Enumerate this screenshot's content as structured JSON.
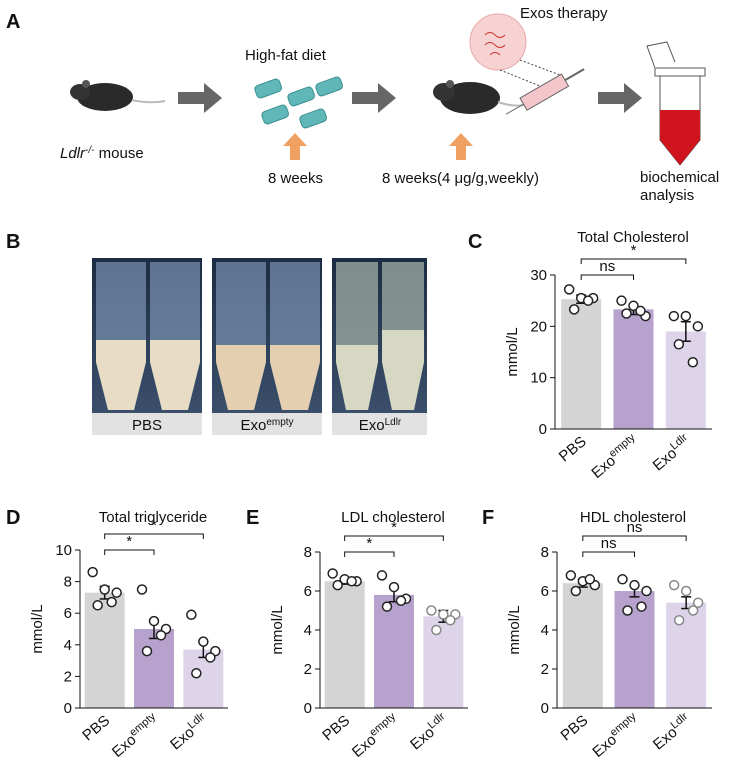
{
  "figure": {
    "A": {
      "letter": "A",
      "diet": "High-fat diet",
      "mouse": [
        "Ldlr",
        "-/-",
        " mouse"
      ],
      "weeks1": "8 weeks",
      "weeks2": "8 weeks(4 μg/g,weekly)",
      "therapy": "Exos therapy",
      "analysis": [
        "biochemical",
        "analysis"
      ]
    },
    "B": {
      "letter": "B",
      "labels": [
        [
          "PBS"
        ],
        [
          "Exo",
          "empty"
        ],
        [
          "Exo",
          "Ldlr"
        ]
      ]
    }
  },
  "chart_data": [
    {
      "type": "bar",
      "letter": "C",
      "title": "Total Cholesterol",
      "ylabel": "mmol/L",
      "categories": [
        [
          "PBS"
        ],
        [
          "Exo",
          "empty"
        ],
        [
          "Exo",
          "Ldlr"
        ]
      ],
      "colors": [
        "#d4d4d4",
        "#b6a2cc",
        "#ddd4ea"
      ],
      "point_colors": [
        "#222222",
        "#222222",
        "#222222"
      ],
      "values": [
        25.3,
        23.3,
        19
      ],
      "errors": [
        0.8,
        1.0,
        1.9
      ],
      "points": [
        [
          27.2,
          25.5,
          25.5,
          23.3,
          25
        ],
        [
          25,
          24,
          22,
          22.5,
          23
        ],
        [
          22,
          22,
          20,
          16.5,
          13
        ]
      ],
      "comparisons": [
        {
          "groups": [
            0,
            1
          ],
          "label": "ns"
        },
        {
          "groups": [
            0,
            2
          ],
          "label": "*"
        }
      ],
      "ylim": [
        0,
        30
      ],
      "yticks": [
        0,
        10,
        20,
        30
      ]
    },
    {
      "type": "bar",
      "letter": "D",
      "title": "Total triglyceride",
      "ylabel": "mmol/L",
      "categories": [
        [
          "PBS"
        ],
        [
          "Exo",
          "empty"
        ],
        [
          "Exo",
          "Ldlr"
        ]
      ],
      "colors": [
        "#d4d4d4",
        "#b6a2cc",
        "#ddd4ea"
      ],
      "point_colors": [
        "#222222",
        "#222222",
        "#222222"
      ],
      "values": [
        7.3,
        5.0,
        3.7
      ],
      "errors": [
        0.4,
        0.6,
        0.5
      ],
      "points": [
        [
          8.6,
          7.5,
          7.3,
          6.5,
          6.7
        ],
        [
          7.5,
          5.5,
          5.0,
          3.6,
          4.6
        ],
        [
          5.9,
          4.2,
          3.6,
          2.2,
          3.2
        ]
      ],
      "comparisons": [
        {
          "groups": [
            0,
            1
          ],
          "label": "*"
        },
        {
          "groups": [
            0,
            2
          ],
          "label": "*"
        }
      ],
      "ylim": [
        0,
        10
      ],
      "yticks": [
        0,
        2,
        4,
        6,
        8,
        10
      ]
    },
    {
      "type": "bar",
      "letter": "E",
      "title": "LDL cholesterol",
      "ylabel": "mmol/L",
      "categories": [
        [
          "PBS"
        ],
        [
          "Exo",
          "empty"
        ],
        [
          "Exo",
          "Ldlr"
        ]
      ],
      "colors": [
        "#d4d4d4",
        "#b6a2cc",
        "#ddd4ea"
      ],
      "point_colors": [
        "#222222",
        "#222222",
        "#888888"
      ],
      "values": [
        6.5,
        5.8,
        4.7
      ],
      "errors": [
        0.15,
        0.35,
        0.3
      ],
      "points": [
        [
          6.9,
          6.6,
          6.5,
          6.3,
          6.5
        ],
        [
          6.8,
          6.2,
          5.6,
          5.2,
          5.5
        ],
        [
          5.0,
          4.8,
          4.8,
          4.0,
          4.5
        ]
      ],
      "comparisons": [
        {
          "groups": [
            0,
            1
          ],
          "label": "*"
        },
        {
          "groups": [
            0,
            2
          ],
          "label": "*"
        }
      ],
      "ylim": [
        0,
        8
      ],
      "yticks": [
        0,
        2,
        4,
        6,
        8
      ]
    },
    {
      "type": "bar",
      "letter": "F",
      "title": "HDL cholesterol",
      "ylabel": "mmol/L",
      "categories": [
        [
          "PBS"
        ],
        [
          "Exo",
          "empty"
        ],
        [
          "Exo",
          "Ldlr"
        ]
      ],
      "colors": [
        "#d4d4d4",
        "#b6a2cc",
        "#ddd4ea"
      ],
      "point_colors": [
        "#222222",
        "#222222",
        "#888888"
      ],
      "values": [
        6.4,
        6.0,
        5.4
      ],
      "errors": [
        0.2,
        0.3,
        0.3
      ],
      "points": [
        [
          6.8,
          6.5,
          6.3,
          6.0,
          6.6
        ],
        [
          6.6,
          6.3,
          6.0,
          5.0,
          5.2
        ],
        [
          6.3,
          6.0,
          5.4,
          4.5,
          5.0
        ]
      ],
      "comparisons": [
        {
          "groups": [
            0,
            1
          ],
          "label": "ns"
        },
        {
          "groups": [
            0,
            2
          ],
          "label": "ns"
        }
      ],
      "ylim": [
        0,
        8
      ],
      "yticks": [
        0,
        2,
        4,
        6,
        8
      ]
    }
  ]
}
